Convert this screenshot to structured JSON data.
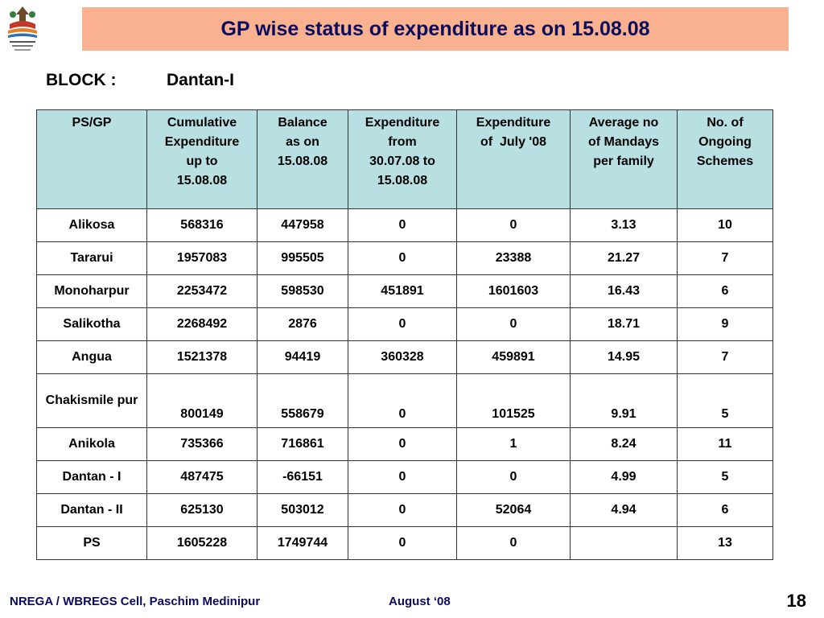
{
  "title": "GP wise status of expenditure as on 15.08.08",
  "block": {
    "label": "BLOCK :",
    "value": "Dantan-I"
  },
  "table": {
    "headers": [
      [
        "PS/GP"
      ],
      [
        "Cumulative",
        "Expenditure",
        "up to",
        "15.08.08"
      ],
      [
        "Balance",
        "as on",
        "15.08.08"
      ],
      [
        "Expenditure",
        "from",
        "30.07.08 to",
        "15.08.08"
      ],
      [
        "Expenditure",
        "of  July '08"
      ],
      [
        "Average no",
        "of Mandays",
        "per family"
      ],
      [
        "No. of",
        "Ongoing",
        "Schemes"
      ]
    ],
    "rows": [
      [
        "Alikosa",
        "568316",
        "447958",
        "0",
        "0",
        "3.13",
        "10"
      ],
      [
        "Tararui",
        "1957083",
        "995505",
        "0",
        "23388",
        "21.27",
        "7"
      ],
      [
        "Monoharpur",
        "2253472",
        "598530",
        "451891",
        "1601603",
        "16.43",
        "6"
      ],
      [
        "Salikotha",
        "2268492",
        "2876",
        "0",
        "0",
        "18.71",
        "9"
      ],
      [
        "Angua",
        "1521378",
        "94419",
        "360328",
        "459891",
        "14.95",
        "7"
      ],
      [
        "Chakismile pur",
        "800149",
        "558679",
        "0",
        "101525",
        "9.91",
        "5"
      ],
      [
        "Anikola",
        "735366",
        "716861",
        "0",
        "1",
        "8.24",
        "11"
      ],
      [
        "Dantan - I",
        "487475",
        "-66151",
        "0",
        "0",
        "4.99",
        "5"
      ],
      [
        "Dantan - II",
        "625130",
        "503012",
        "0",
        "52064",
        "4.94",
        "6"
      ],
      [
        "PS",
        "1605228",
        "1749744",
        "0",
        "0",
        "",
        "13"
      ]
    ]
  },
  "footer": {
    "left": "NREGA / WBREGS Cell, Paschim Medinipur",
    "middle": "August ‘08",
    "page": "18"
  },
  "colors": {
    "title_bg": "#f9b18f",
    "header_bg": "#b8dfe2",
    "title_text": "#0b0b5e"
  },
  "icons": {
    "logo": "nrega-logo-icon"
  }
}
